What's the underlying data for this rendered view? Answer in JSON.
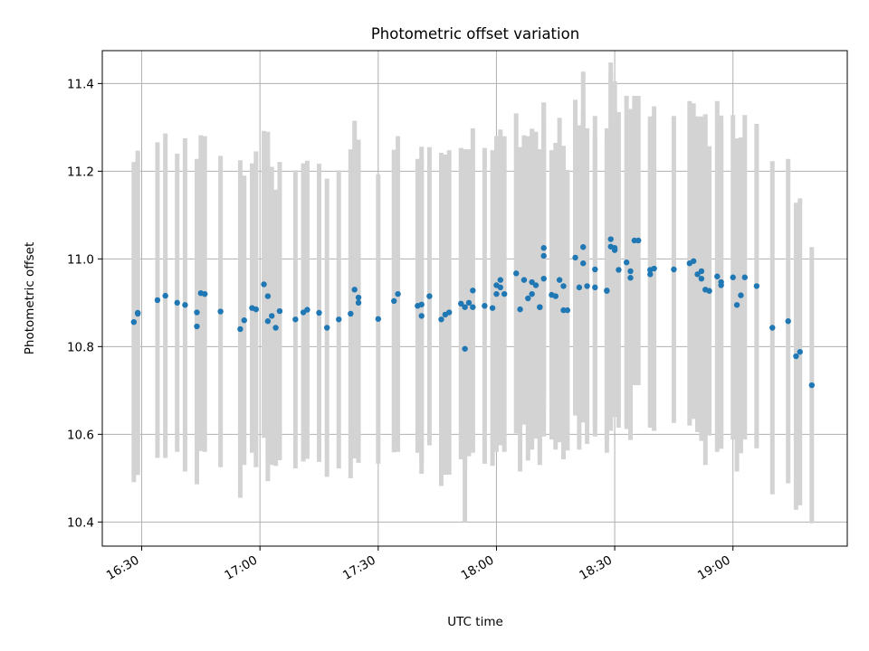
{
  "chart_data": {
    "type": "scatter",
    "title": "Photometric offset variation",
    "xlabel": "UTC time",
    "ylabel": "Photometric offset",
    "xlim": [
      "16:20",
      "19:29"
    ],
    "ylim": [
      10.345,
      11.475
    ],
    "xticks": [
      "16:30",
      "17:00",
      "17:30",
      "18:00",
      "18:30",
      "19:00"
    ],
    "yticks": [
      10.4,
      10.6,
      10.8,
      11.0,
      11.2,
      11.4
    ],
    "grid": true,
    "colors": {
      "points": "#1f77b4",
      "errorbars": "#d3d3d3",
      "grid": "#b0b0b0"
    },
    "points": [
      {
        "t": "16:28",
        "y": 10.856,
        "err": 0.365
      },
      {
        "t": "16:29",
        "y": 10.877,
        "err": 0.37
      },
      {
        "t": "16:29",
        "y": 10.875,
        "err": 0.36
      },
      {
        "t": "16:34",
        "y": 10.906,
        "err": 0.36
      },
      {
        "t": "16:36",
        "y": 10.916,
        "err": 0.37
      },
      {
        "t": "16:39",
        "y": 10.9,
        "err": 0.34
      },
      {
        "t": "16:41",
        "y": 10.895,
        "err": 0.38
      },
      {
        "t": "16:44",
        "y": 10.878,
        "err": 0.35
      },
      {
        "t": "16:44",
        "y": 10.846,
        "err": 0.36
      },
      {
        "t": "16:45",
        "y": 10.922,
        "err": 0.36
      },
      {
        "t": "16:46",
        "y": 10.92,
        "err": 0.36
      },
      {
        "t": "16:50",
        "y": 10.88,
        "err": 0.355
      },
      {
        "t": "16:55",
        "y": 10.84,
        "err": 0.385
      },
      {
        "t": "16:56",
        "y": 10.86,
        "err": 0.33
      },
      {
        "t": "16:58",
        "y": 10.888,
        "err": 0.33
      },
      {
        "t": "16:59",
        "y": 10.885,
        "err": 0.36
      },
      {
        "t": "17:01",
        "y": 10.942,
        "err": 0.35
      },
      {
        "t": "17:02",
        "y": 10.858,
        "err": 0.365
      },
      {
        "t": "17:02",
        "y": 10.915,
        "err": 0.375
      },
      {
        "t": "17:03",
        "y": 10.87,
        "err": 0.34
      },
      {
        "t": "17:04",
        "y": 10.843,
        "err": 0.315
      },
      {
        "t": "17:05",
        "y": 10.881,
        "err": 0.34
      },
      {
        "t": "17:09",
        "y": 10.862,
        "err": 0.34
      },
      {
        "t": "17:11",
        "y": 10.878,
        "err": 0.34
      },
      {
        "t": "17:12",
        "y": 10.884,
        "err": 0.34
      },
      {
        "t": "17:15",
        "y": 10.877,
        "err": 0.34
      },
      {
        "t": "17:17",
        "y": 10.843,
        "err": 0.34
      },
      {
        "t": "17:20",
        "y": 10.862,
        "err": 0.34
      },
      {
        "t": "17:23",
        "y": 10.875,
        "err": 0.375
      },
      {
        "t": "17:24",
        "y": 10.93,
        "err": 0.385
      },
      {
        "t": "17:25",
        "y": 10.912,
        "err": 0.36
      },
      {
        "t": "17:25",
        "y": 10.9,
        "err": 0.365
      },
      {
        "t": "17:30",
        "y": 10.863,
        "err": 0.33
      },
      {
        "t": "17:34",
        "y": 10.904,
        "err": 0.345
      },
      {
        "t": "17:35",
        "y": 10.92,
        "err": 0.36
      },
      {
        "t": "17:40",
        "y": 10.893,
        "err": 0.335
      },
      {
        "t": "17:41",
        "y": 10.87,
        "err": 0.36
      },
      {
        "t": "17:41",
        "y": 10.896,
        "err": 0.36
      },
      {
        "t": "17:43",
        "y": 10.915,
        "err": 0.34
      },
      {
        "t": "17:46",
        "y": 10.862,
        "err": 0.38
      },
      {
        "t": "17:47",
        "y": 10.873,
        "err": 0.365
      },
      {
        "t": "17:48",
        "y": 10.878,
        "err": 0.37
      },
      {
        "t": "17:51",
        "y": 10.898,
        "err": 0.355
      },
      {
        "t": "17:52",
        "y": 10.795,
        "err": 0.395
      },
      {
        "t": "17:52",
        "y": 10.89,
        "err": 0.36
      },
      {
        "t": "17:53",
        "y": 10.9,
        "err": 0.35
      },
      {
        "t": "17:54",
        "y": 10.928,
        "err": 0.37
      },
      {
        "t": "17:54",
        "y": 10.89,
        "err": 0.33
      },
      {
        "t": "17:57",
        "y": 10.893,
        "err": 0.36
      },
      {
        "t": "17:59",
        "y": 10.888,
        "err": 0.36
      },
      {
        "t": "18:00",
        "y": 10.94,
        "err": 0.32
      },
      {
        "t": "18:00",
        "y": 10.92,
        "err": 0.36
      },
      {
        "t": "18:01",
        "y": 10.935,
        "err": 0.36
      },
      {
        "t": "18:01",
        "y": 10.952,
        "err": 0.33
      },
      {
        "t": "18:02",
        "y": 10.92,
        "err": 0.36
      },
      {
        "t": "18:05",
        "y": 10.967,
        "err": 0.365
      },
      {
        "t": "18:06",
        "y": 10.885,
        "err": 0.37
      },
      {
        "t": "18:07",
        "y": 10.952,
        "err": 0.33
      },
      {
        "t": "18:08",
        "y": 10.91,
        "err": 0.37
      },
      {
        "t": "18:09",
        "y": 10.92,
        "err": 0.355
      },
      {
        "t": "18:09",
        "y": 10.947,
        "err": 0.35
      },
      {
        "t": "18:10",
        "y": 10.94,
        "err": 0.35
      },
      {
        "t": "18:11",
        "y": 10.89,
        "err": 0.36
      },
      {
        "t": "18:11",
        "y": 10.89,
        "err": 0.34
      },
      {
        "t": "18:12",
        "y": 11.025,
        "err": 0.33
      },
      {
        "t": "18:12",
        "y": 11.007,
        "err": 0.35
      },
      {
        "t": "18:12",
        "y": 10.955,
        "err": 0.36
      },
      {
        "t": "18:14",
        "y": 10.918,
        "err": 0.33
      },
      {
        "t": "18:15",
        "y": 10.915,
        "err": 0.35
      },
      {
        "t": "18:16",
        "y": 10.952,
        "err": 0.37
      },
      {
        "t": "18:17",
        "y": 10.938,
        "err": 0.32
      },
      {
        "t": "18:17",
        "y": 10.883,
        "err": 0.34
      },
      {
        "t": "18:18",
        "y": 10.883,
        "err": 0.32
      },
      {
        "t": "18:20",
        "y": 11.003,
        "err": 0.36
      },
      {
        "t": "18:21",
        "y": 10.935,
        "err": 0.37
      },
      {
        "t": "18:22",
        "y": 10.99,
        "err": 0.35
      },
      {
        "t": "18:22",
        "y": 11.027,
        "err": 0.4
      },
      {
        "t": "18:23",
        "y": 10.938,
        "err": 0.36
      },
      {
        "t": "18:25",
        "y": 10.976,
        "err": 0.35
      },
      {
        "t": "18:25",
        "y": 10.935,
        "err": 0.34
      },
      {
        "t": "18:28",
        "y": 10.928,
        "err": 0.37
      },
      {
        "t": "18:28",
        "y": 10.927,
        "err": 0.34
      },
      {
        "t": "18:29",
        "y": 11.045,
        "err": 0.38
      },
      {
        "t": "18:29",
        "y": 11.028,
        "err": 0.42
      },
      {
        "t": "18:30",
        "y": 11.02,
        "err": 0.38
      },
      {
        "t": "18:30",
        "y": 11.025,
        "err": 0.38
      },
      {
        "t": "18:31",
        "y": 10.975,
        "err": 0.36
      },
      {
        "t": "18:33",
        "y": 10.992,
        "err": 0.38
      },
      {
        "t": "18:34",
        "y": 10.957,
        "err": 0.37
      },
      {
        "t": "18:34",
        "y": 10.972,
        "err": 0.37
      },
      {
        "t": "18:35",
        "y": 11.042,
        "err": 0.33
      },
      {
        "t": "18:36",
        "y": 11.042,
        "err": 0.33
      },
      {
        "t": "18:39",
        "y": 10.975,
        "err": 0.35
      },
      {
        "t": "18:39",
        "y": 10.965,
        "err": 0.35
      },
      {
        "t": "18:40",
        "y": 10.978,
        "err": 0.37
      },
      {
        "t": "18:45",
        "y": 10.976,
        "err": 0.35
      },
      {
        "t": "18:49",
        "y": 10.99,
        "err": 0.37
      },
      {
        "t": "18:50",
        "y": 10.995,
        "err": 0.36
      },
      {
        "t": "18:51",
        "y": 10.965,
        "err": 0.36
      },
      {
        "t": "18:52",
        "y": 10.955,
        "err": 0.37
      },
      {
        "t": "18:52",
        "y": 10.972,
        "err": 0.33
      },
      {
        "t": "18:53",
        "y": 10.93,
        "err": 0.4
      },
      {
        "t": "18:54",
        "y": 10.927,
        "err": 0.33
      },
      {
        "t": "18:56",
        "y": 10.96,
        "err": 0.4
      },
      {
        "t": "18:57",
        "y": 10.947,
        "err": 0.38
      },
      {
        "t": "18:57",
        "y": 10.94,
        "err": 0.36
      },
      {
        "t": "19:00",
        "y": 10.958,
        "err": 0.37
      },
      {
        "t": "19:01",
        "y": 10.895,
        "err": 0.38
      },
      {
        "t": "19:02",
        "y": 10.917,
        "err": 0.36
      },
      {
        "t": "19:03",
        "y": 10.958,
        "err": 0.37
      },
      {
        "t": "19:06",
        "y": 10.938,
        "err": 0.37
      },
      {
        "t": "19:10",
        "y": 10.843,
        "err": 0.38
      },
      {
        "t": "19:14",
        "y": 10.858,
        "err": 0.37
      },
      {
        "t": "19:16",
        "y": 10.778,
        "err": 0.35
      },
      {
        "t": "19:17",
        "y": 10.788,
        "err": 0.35
      },
      {
        "t": "19:20",
        "y": 10.712,
        "err": 0.315
      }
    ]
  }
}
